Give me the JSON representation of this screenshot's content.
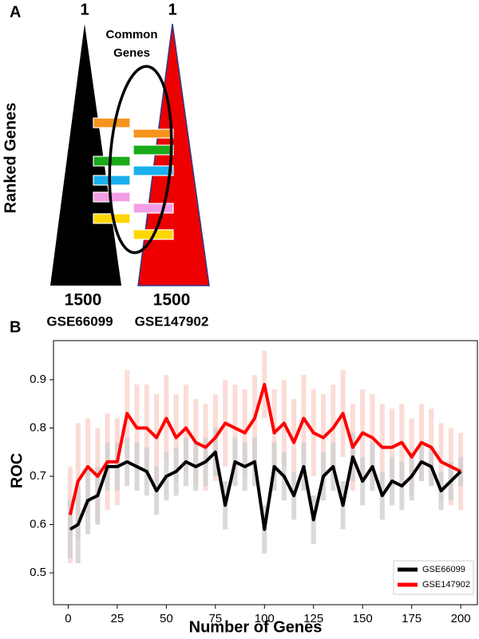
{
  "panel_a": {
    "label": "A",
    "top_ranks": [
      "1",
      "1"
    ],
    "common_label": [
      "Common",
      "Genes"
    ],
    "axis_label": "Ranked Genes",
    "bottom_ranks": [
      "1500",
      "1500"
    ],
    "datasets": [
      "GSE66099",
      "GSE147902"
    ]
  },
  "panel_b_label": "B",
  "chart_data": {
    "type": "line",
    "xlabel": "Number of Genes",
    "ylabel": "ROC",
    "x": [
      1,
      5,
      10,
      15,
      20,
      25,
      30,
      35,
      40,
      45,
      50,
      55,
      60,
      65,
      70,
      75,
      80,
      85,
      90,
      95,
      100,
      105,
      110,
      115,
      120,
      125,
      130,
      135,
      140,
      145,
      150,
      155,
      160,
      165,
      170,
      175,
      180,
      185,
      190,
      195,
      200
    ],
    "series": [
      {
        "name": "GSE66099",
        "color": "#000000",
        "error_color": "#cfcfcf",
        "values": [
          0.59,
          0.6,
          0.65,
          0.66,
          0.72,
          0.72,
          0.73,
          0.72,
          0.71,
          0.67,
          0.7,
          0.71,
          0.73,
          0.72,
          0.73,
          0.75,
          0.64,
          0.73,
          0.72,
          0.73,
          0.59,
          0.72,
          0.7,
          0.66,
          0.72,
          0.61,
          0.7,
          0.72,
          0.64,
          0.74,
          0.69,
          0.72,
          0.66,
          0.69,
          0.68,
          0.7,
          0.73,
          0.72,
          0.67,
          0.69,
          0.71
        ],
        "errors": [
          0.06,
          0.08,
          0.07,
          0.06,
          0.05,
          0.05,
          0.05,
          0.05,
          0.05,
          0.05,
          0.05,
          0.05,
          0.05,
          0.05,
          0.05,
          0.05,
          0.05,
          0.05,
          0.05,
          0.05,
          0.05,
          0.05,
          0.05,
          0.05,
          0.05,
          0.05,
          0.05,
          0.05,
          0.05,
          0.05,
          0.05,
          0.05,
          0.05,
          0.05,
          0.05,
          0.05,
          0.04,
          0.04,
          0.04,
          0.04,
          0.03
        ]
      },
      {
        "name": "GSE147902",
        "color": "#ff0000",
        "error_color": "#fbd3cc",
        "values": [
          0.62,
          0.69,
          0.72,
          0.7,
          0.73,
          0.73,
          0.83,
          0.8,
          0.8,
          0.78,
          0.82,
          0.78,
          0.8,
          0.77,
          0.76,
          0.78,
          0.81,
          0.8,
          0.79,
          0.82,
          0.89,
          0.79,
          0.81,
          0.77,
          0.82,
          0.79,
          0.78,
          0.8,
          0.83,
          0.76,
          0.79,
          0.78,
          0.76,
          0.76,
          0.77,
          0.74,
          0.77,
          0.76,
          0.73,
          0.72,
          0.71
        ],
        "errors": [
          0.1,
          0.12,
          0.1,
          0.1,
          0.1,
          0.09,
          0.09,
          0.09,
          0.09,
          0.09,
          0.09,
          0.09,
          0.09,
          0.09,
          0.09,
          0.09,
          0.09,
          0.09,
          0.09,
          0.09,
          0.07,
          0.09,
          0.09,
          0.09,
          0.09,
          0.09,
          0.09,
          0.09,
          0.09,
          0.09,
          0.09,
          0.09,
          0.09,
          0.08,
          0.08,
          0.08,
          0.08,
          0.08,
          0.08,
          0.08,
          0.08
        ]
      }
    ],
    "xlim": [
      -7.5,
      208.5
    ],
    "ylim": [
      0.434,
      0.981
    ],
    "xticks": [
      0,
      25,
      50,
      75,
      100,
      125,
      150,
      175,
      200
    ],
    "yticks": [
      0.5,
      0.6,
      0.7,
      0.8,
      0.9
    ],
    "legend": "lower right"
  }
}
